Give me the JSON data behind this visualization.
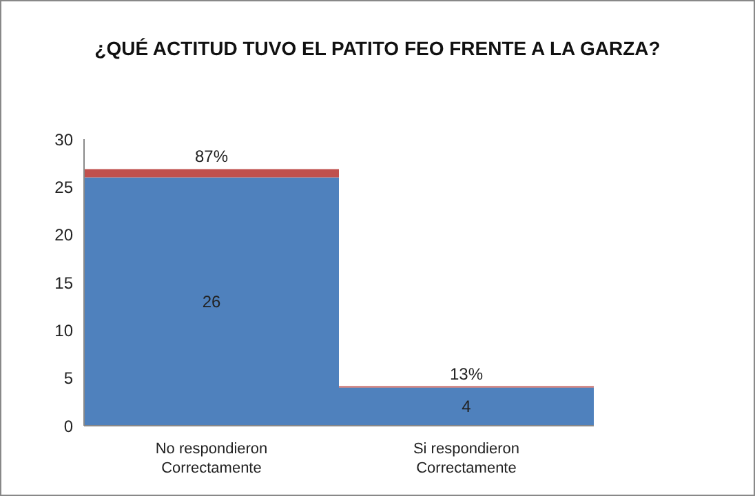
{
  "chart_data": {
    "type": "bar",
    "title": "¿QUÉ ACTITUD TUVO EL PATITO FEO FRENTE A LA GARZA?",
    "categories": [
      "No respondieron Correctamente",
      "Si respondieron Correctamente"
    ],
    "stacked": true,
    "series": [
      {
        "color": "#4f81bd",
        "values": [
          26,
          4
        ],
        "value_labels": [
          "26",
          "4"
        ]
      },
      {
        "color": "#c0504d",
        "values": [
          0.87,
          0.13
        ],
        "value_labels": [
          "87%",
          "13%"
        ]
      }
    ],
    "ylim": [
      0,
      30
    ],
    "yticks": [
      0,
      5,
      10,
      15,
      20,
      25,
      30
    ],
    "grid": false,
    "legend": false
  }
}
